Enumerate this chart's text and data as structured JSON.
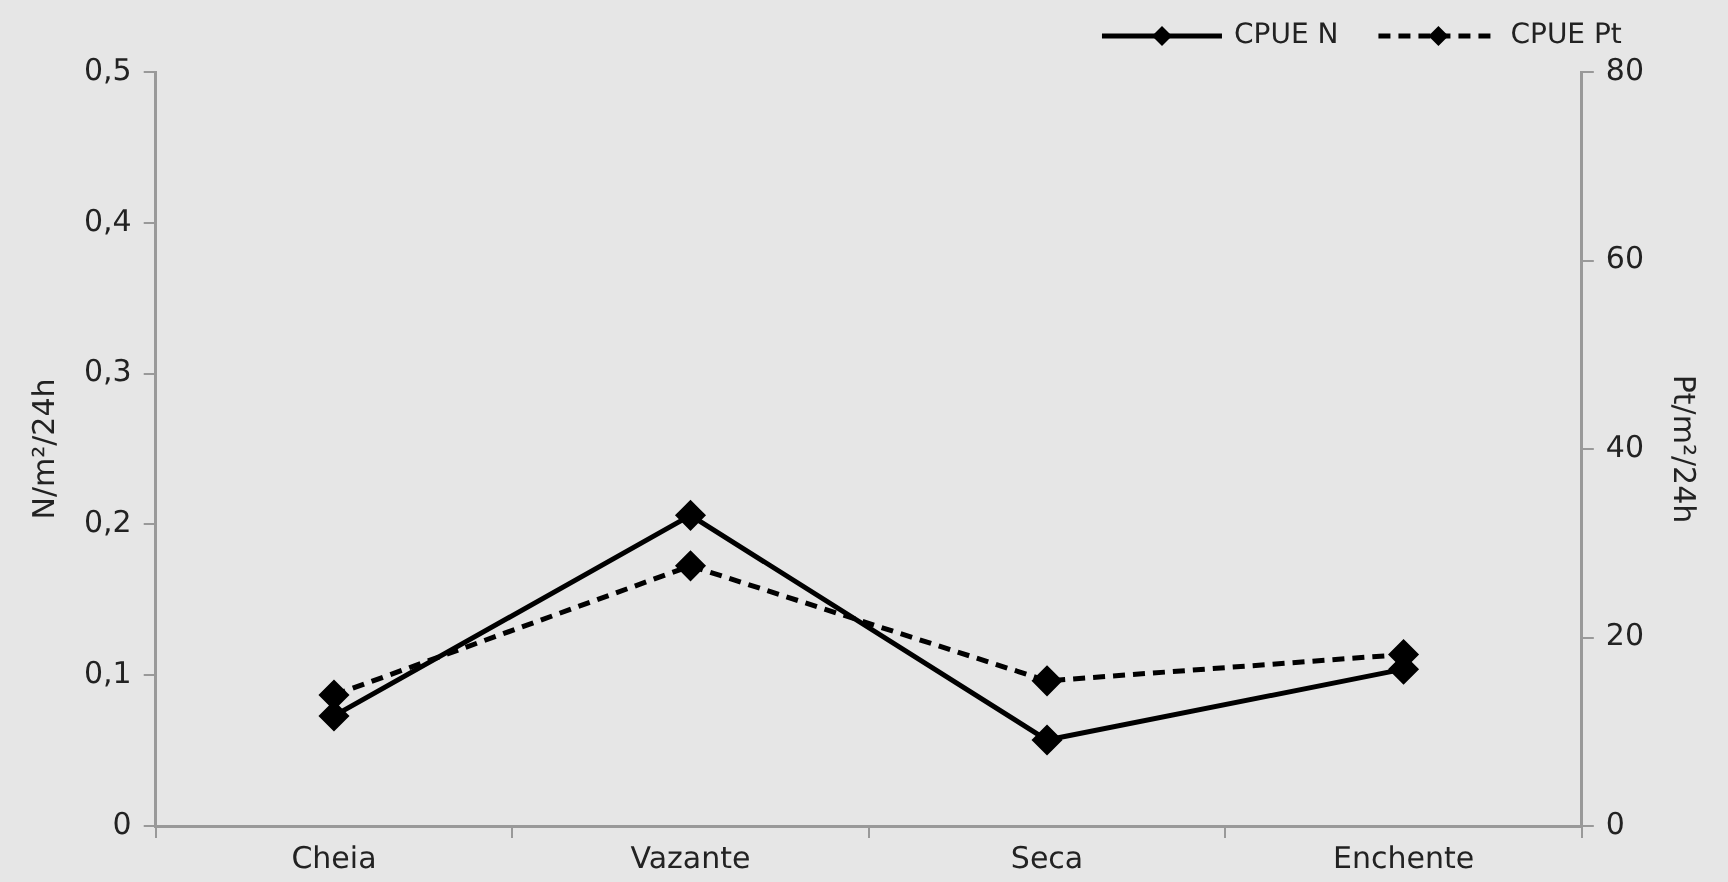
{
  "chart_data": {
    "type": "line",
    "categories": [
      "Cheia",
      "Vazante",
      "Seca",
      "Enchente"
    ],
    "series": [
      {
        "name": "CPUE N",
        "color": "#000000",
        "values": [
          0.073,
          0.206,
          0.057,
          0.104
        ],
        "line_style": "solid"
      },
      {
        "name": "CPUE Pt",
        "color": "#000000",
        "values": [
          13.9,
          27.6,
          15.4,
          18.2
        ],
        "axis": "y2",
        "line_style": "dashed"
      }
    ],
    "ylabel": "N/m²/24h",
    "y2label": "Pt/m²/24h",
    "ylim": [
      0,
      0.5
    ],
    "yticks": [
      {
        "value": 0,
        "label": "0"
      },
      {
        "value": 0.1,
        "label": "0,1"
      },
      {
        "value": 0.2,
        "label": "0,2"
      },
      {
        "value": 0.3,
        "label": "0,3"
      },
      {
        "value": 0.4,
        "label": "0,4"
      },
      {
        "value": 0.5,
        "label": "0,5"
      }
    ],
    "y2lim": [
      0,
      80
    ],
    "y2ticks": [
      0,
      20,
      40,
      60,
      80
    ],
    "marker": "diamond",
    "legend": "top right",
    "grid": false
  }
}
